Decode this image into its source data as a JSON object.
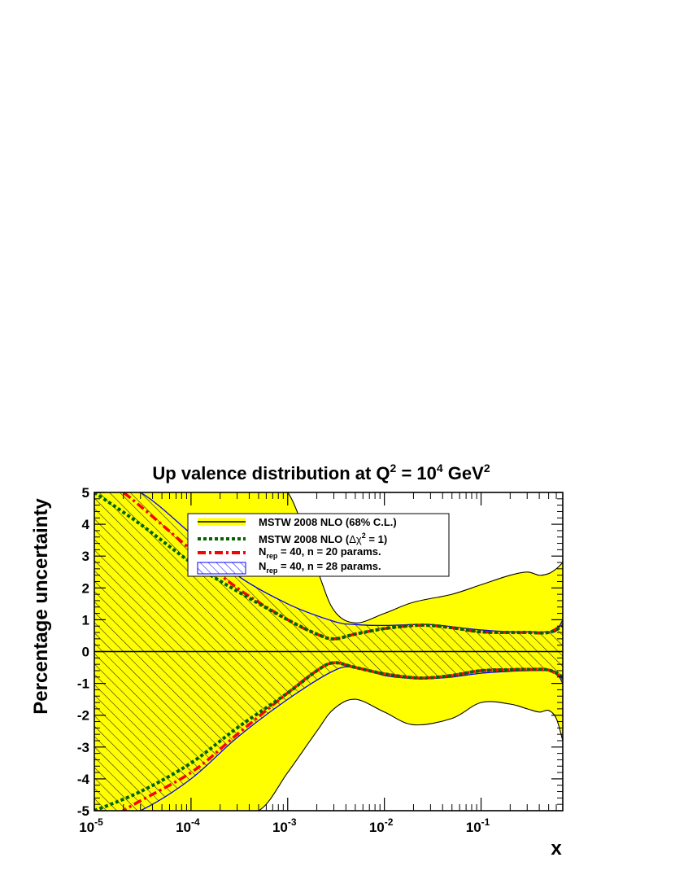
{
  "chart_data": {
    "type": "line",
    "title": {
      "main": "Up valence distribution at Q",
      "sup1": "2",
      "mid": " = 10",
      "sup2": "4",
      "unit": " GeV",
      "sup3": "2"
    },
    "xlabel": "x",
    "ylabel": "Percentage uncertainty",
    "x_scale": "log",
    "xlim": [
      1e-05,
      0.7
    ],
    "ylim": [
      -5,
      5
    ],
    "x_ticks": [
      {
        "value": 1e-05,
        "base": "10",
        "exp": "-5"
      },
      {
        "value": 0.0001,
        "base": "10",
        "exp": "-4"
      },
      {
        "value": 0.001,
        "base": "10",
        "exp": "-3"
      },
      {
        "value": 0.01,
        "base": "10",
        "exp": "-2"
      },
      {
        "value": 0.1,
        "base": "10",
        "exp": "-1"
      }
    ],
    "y_ticks": [
      {
        "value": 5,
        "label": "5"
      },
      {
        "value": 4,
        "label": "4"
      },
      {
        "value": 3,
        "label": "3"
      },
      {
        "value": 2,
        "label": "2"
      },
      {
        "value": 1,
        "label": "1"
      },
      {
        "value": 0,
        "label": "0"
      },
      {
        "value": -1,
        "label": "-1"
      },
      {
        "value": -2,
        "label": "-2"
      },
      {
        "value": -3,
        "label": "-3"
      },
      {
        "value": -4,
        "label": "-4"
      },
      {
        "value": -5,
        "label": "-5"
      }
    ],
    "grid": false,
    "legend_position": "top-center",
    "legend": [
      {
        "text": "MSTW 2008 NLO (68% C.L.)"
      },
      {
        "text": "MSTW 2008 NLO (",
        "greek": "Δχ",
        "sup": "2",
        "tail": " = 1)"
      },
      {
        "prefix": "N",
        "sub": "rep",
        "tail": " = 40, n = 20 params."
      },
      {
        "prefix": "N",
        "sub": "rep",
        "tail": " = 40, n = 28 params."
      }
    ],
    "colors": {
      "band_68cl": "#ffff00",
      "delta_chi2": "#006400",
      "nrep20": "#ff0000",
      "nrep28": "#0000ff",
      "axis": "#000000"
    },
    "series": [
      {
        "name": "MSTW 2008 NLO (68% C.L.)",
        "style": "filled-band",
        "x": [
          1e-05,
          0.0001,
          0.0002,
          0.0005,
          0.001,
          0.002,
          0.003,
          0.005,
          0.01,
          0.02,
          0.05,
          0.1,
          0.2,
          0.3,
          0.4,
          0.5,
          0.6,
          0.7
        ],
        "upper": [
          5,
          5,
          5,
          5,
          5,
          2.6,
          1.3,
          0.9,
          1.2,
          1.55,
          1.8,
          2.1,
          2.4,
          2.5,
          2.4,
          2.45,
          2.6,
          2.8
        ],
        "lower": [
          -5,
          -5,
          -5,
          -5,
          -3.8,
          -2.5,
          -1.8,
          -1.5,
          -1.9,
          -2.3,
          -2.1,
          -1.6,
          -1.65,
          -1.8,
          -1.9,
          -1.85,
          -2.1,
          -2.8
        ]
      },
      {
        "name": "MSTW 2008 NLO (Δχ2 = 1)",
        "style": "dotted",
        "x": [
          1e-05,
          3e-05,
          0.0001,
          0.0003,
          0.001,
          0.002,
          0.003,
          0.005,
          0.01,
          0.02,
          0.03,
          0.05,
          0.1,
          0.2,
          0.3,
          0.5,
          0.7
        ],
        "upper": [
          5,
          4.0,
          2.8,
          1.9,
          1.0,
          0.55,
          0.4,
          0.55,
          0.72,
          0.82,
          0.82,
          0.75,
          0.62,
          0.6,
          0.6,
          0.6,
          0.8
        ],
        "lower": [
          -5,
          -4.4,
          -3.5,
          -2.4,
          -1.3,
          -0.6,
          -0.35,
          -0.5,
          -0.7,
          -0.82,
          -0.82,
          -0.75,
          -0.6,
          -0.57,
          -0.56,
          -0.58,
          -0.8
        ]
      },
      {
        "name": "Nrep = 40, n = 20 params.",
        "style": "dash-dot",
        "x": [
          1e-05,
          2e-05,
          0.0001,
          0.0003,
          0.001,
          0.002,
          0.003,
          0.005,
          0.01,
          0.02,
          0.03,
          0.05,
          0.1,
          0.2,
          0.3,
          0.5,
          0.7
        ],
        "upper": [
          5.5,
          5,
          3.2,
          2.0,
          1.0,
          0.55,
          0.4,
          0.55,
          0.72,
          0.82,
          0.82,
          0.75,
          0.62,
          0.6,
          0.6,
          0.6,
          0.85
        ],
        "lower": [
          -5.8,
          -5,
          -3.8,
          -2.6,
          -1.3,
          -0.6,
          -0.35,
          -0.5,
          -0.7,
          -0.82,
          -0.82,
          -0.75,
          -0.6,
          -0.57,
          -0.56,
          -0.58,
          -0.85
        ]
      },
      {
        "name": "Nrep = 40, n = 28 params.",
        "style": "hatched-band",
        "x": [
          1e-05,
          3e-05,
          0.0001,
          0.0003,
          0.001,
          0.003,
          0.005,
          0.01,
          0.02,
          0.03,
          0.05,
          0.1,
          0.2,
          0.3,
          0.5,
          0.6,
          0.7
        ],
        "upper": [
          5.5,
          5,
          3.7,
          2.4,
          1.5,
          0.95,
          0.85,
          0.82,
          0.85,
          0.85,
          0.78,
          0.68,
          0.62,
          0.62,
          0.62,
          0.65,
          1.0
        ],
        "lower": [
          -5.5,
          -5,
          -4.0,
          -2.7,
          -1.5,
          -0.6,
          -0.5,
          -0.75,
          -0.85,
          -0.85,
          -0.8,
          -0.68,
          -0.62,
          -0.6,
          -0.6,
          -0.65,
          -1.0
        ]
      }
    ]
  }
}
